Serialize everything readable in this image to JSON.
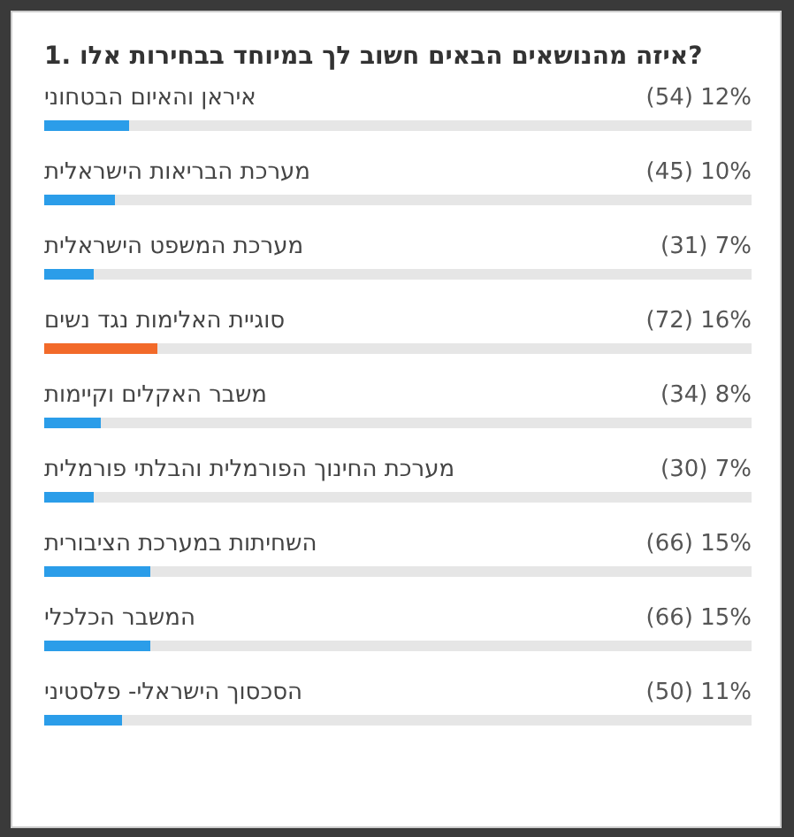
{
  "chart_data": {
    "type": "bar",
    "orientation": "horizontal",
    "title": "1. איזה מהנושאים הבאים חשוב לך במיוחד בבחירות אלו?",
    "categories": [
      "איראן והאיום הבטחוני",
      "מערכת הבריאות הישראלית",
      "מערכת המשפט הישראלית",
      "סוגיית האלימות נגד נשים",
      "משבר האקלים וקיימות",
      "מערכת החינוך הפורמלית והבלתי פורמלית",
      "השחיתות במערכת הציבורית",
      "המשבר הכלכלי",
      "הסכסוך הישראלי- פלסטיני"
    ],
    "values": [
      12,
      10,
      7,
      16,
      8,
      7,
      15,
      15,
      11
    ],
    "value_labels": [
      "(54) 12%",
      "(45) 10%",
      "(31) 7%",
      "(72) 16%",
      "(34) 8%",
      "(30) 7%",
      "(66) 15%",
      "(66) 15%",
      "(50) 11%"
    ],
    "colors": [
      "#2b9de9",
      "#2b9de9",
      "#2b9de9",
      "#f26a2a",
      "#2b9de9",
      "#2b9de9",
      "#2b9de9",
      "#2b9de9",
      "#2b9de9"
    ],
    "xlim": [
      0,
      100
    ],
    "tick_labels": false
  }
}
